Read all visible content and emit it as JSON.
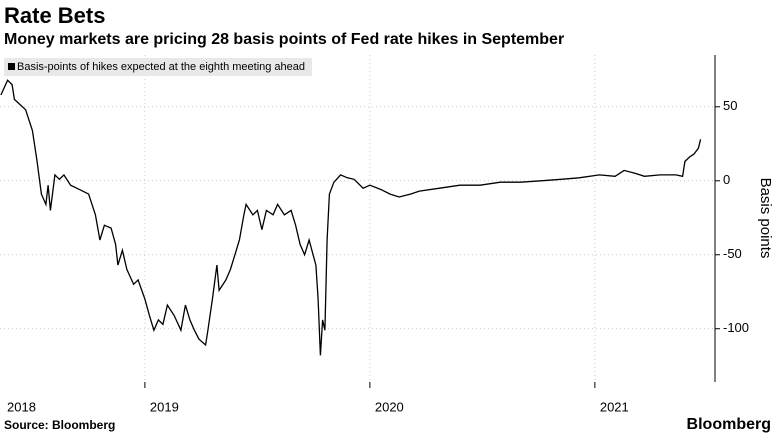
{
  "chart_data": {
    "type": "line",
    "title": "Rate Bets",
    "subtitle": "Money markets are pricing 28 basis points of Fed rate hikes in September",
    "y_axis_label": "Basis points",
    "source": "Source: Bloomberg",
    "brand": "Bloomberg",
    "x": [
      2018.36,
      2018.39,
      2018.41,
      2018.42,
      2018.47,
      2018.5,
      2018.52,
      2018.54,
      2018.56,
      2018.57,
      2018.58,
      2018.6,
      2018.62,
      2018.64,
      2018.67,
      2018.71,
      2018.75,
      2018.78,
      2018.8,
      2018.82,
      2018.85,
      2018.87,
      2018.88,
      2018.9,
      2018.92,
      2018.95,
      2018.97,
      2019.0,
      2019.02,
      2019.04,
      2019.06,
      2019.08,
      2019.1,
      2019.13,
      2019.16,
      2019.18,
      2019.2,
      2019.22,
      2019.24,
      2019.27,
      2019.28,
      2019.3,
      2019.32,
      2019.33,
      2019.36,
      2019.38,
      2019.4,
      2019.42,
      2019.44,
      2019.45,
      2019.48,
      2019.5,
      2019.52,
      2019.54,
      2019.57,
      2019.59,
      2019.62,
      2019.65,
      2019.67,
      2019.69,
      2019.71,
      2019.73,
      2019.76,
      2019.77,
      2019.78,
      2019.79,
      2019.8,
      2019.81,
      2019.82,
      2019.84,
      2019.87,
      2019.9,
      2019.93,
      2019.97,
      2020.0,
      2020.05,
      2020.09,
      2020.13,
      2020.18,
      2020.22,
      2020.31,
      2020.4,
      2020.49,
      2020.58,
      2020.67,
      2020.76,
      2020.85,
      2020.93,
      2021.02,
      2021.09,
      2021.13,
      2021.18,
      2021.22,
      2021.29,
      2021.36,
      2021.39,
      2021.4,
      2021.42,
      2021.44,
      2021.46,
      2021.47
    ],
    "series": [
      {
        "name": "Basis-points of hikes expected at the eighth meeting ahead",
        "color": "#000000",
        "values": [
          58,
          68,
          65,
          55,
          48,
          34,
          14,
          -9,
          -16,
          -3,
          -20,
          4,
          1,
          4,
          -3,
          -6,
          -9,
          -23,
          -40,
          -30,
          -32,
          -43,
          -57,
          -47,
          -60,
          -70,
          -67,
          -80,
          -91,
          -101,
          -94,
          -97,
          -84,
          -91,
          -101,
          -84,
          -94,
          -101,
          -107,
          -111,
          -101,
          -80,
          -57,
          -74,
          -67,
          -60,
          -50,
          -40,
          -23,
          -16,
          -23,
          -20,
          -33,
          -20,
          -23,
          -16,
          -23,
          -20,
          -30,
          -43,
          -50,
          -40,
          -57,
          -80,
          -118,
          -94,
          -101,
          -40,
          -9,
          -1,
          4,
          2,
          1,
          -5,
          -3,
          -6,
          -9,
          -11,
          -9,
          -7,
          -5,
          -3,
          -3,
          -1,
          -1,
          0,
          1,
          2,
          4,
          3,
          7,
          5,
          3,
          4,
          4,
          3,
          13,
          16,
          18,
          22,
          28
        ]
      }
    ],
    "xlim": [
      2018.356,
      2021.534
    ],
    "xticks": [
      2018,
      2019,
      2020,
      2021
    ],
    "ylim": [
      -136,
      85
    ],
    "yticks": [
      -100,
      -50,
      0,
      50
    ],
    "grid": true,
    "legend": "top-left"
  }
}
